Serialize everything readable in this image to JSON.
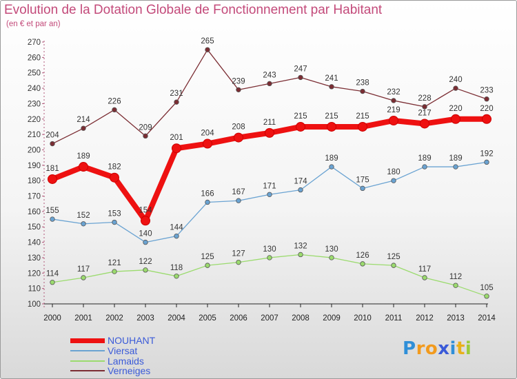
{
  "chart_data": {
    "type": "line",
    "title": "Evolution de la Dotation Globale de Fonctionnement par Habitant",
    "subtitle": "(en € et par an)",
    "xlabel": "",
    "ylabel": "",
    "ylim": [
      100,
      270
    ],
    "ytick_step": 10,
    "grid": false,
    "legend_position": "bottom-left",
    "categories": [
      "2000",
      "2001",
      "2002",
      "2003",
      "2004",
      "2005",
      "2006",
      "2007",
      "2008",
      "2009",
      "2010",
      "2011",
      "2012",
      "2013",
      "2014"
    ],
    "series": [
      {
        "name": "Verneiges",
        "color": "#7b2d33",
        "values": [
          204,
          214,
          226,
          209,
          231,
          265,
          239,
          243,
          247,
          241,
          238,
          232,
          228,
          240,
          233
        ]
      },
      {
        "name": "Lamaids",
        "color": "#9bdb6e",
        "values": [
          114,
          117,
          121,
          122,
          118,
          125,
          127,
          130,
          132,
          130,
          126,
          125,
          117,
          112,
          105
        ]
      },
      {
        "name": "Viersat",
        "color": "#6aa3d2",
        "values": [
          155,
          152,
          153,
          140,
          144,
          166,
          167,
          171,
          174,
          189,
          175,
          180,
          189,
          189,
          192
        ]
      },
      {
        "name": "NOUHANT",
        "color": "#ee1111",
        "values": [
          181,
          189,
          182,
          154,
          201,
          204,
          208,
          211,
          215,
          215,
          215,
          219,
          217,
          220,
          220
        ]
      }
    ]
  },
  "legend": [
    {
      "name": "NOUHANT",
      "color": "#ee1111"
    },
    {
      "name": "Viersat",
      "color": "#6aa3d2"
    },
    {
      "name": "Lamaids",
      "color": "#9bdb6e"
    },
    {
      "name": "Verneiges",
      "color": "#7b2d33"
    }
  ],
  "logo": {
    "text": "Proxiti",
    "letters": [
      "P",
      "r",
      "o",
      "x",
      "i",
      "t",
      "i"
    ],
    "colors": [
      "#2f8fd8",
      "#f29a1d",
      "#f29a1d",
      "#3a5ad8",
      "#2f8fd8",
      "#e8b01a",
      "#9bcb3b"
    ]
  }
}
